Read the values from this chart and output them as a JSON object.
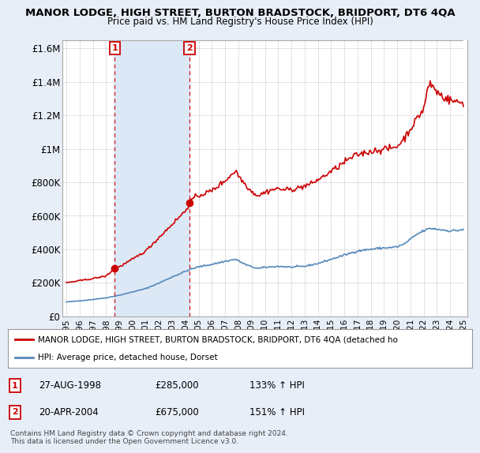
{
  "title": "MANOR LODGE, HIGH STREET, BURTON BRADSTOCK, BRIDPORT, DT6 4QA",
  "subtitle": "Price paid vs. HM Land Registry's House Price Index (HPI)",
  "legend_line1": "MANOR LODGE, HIGH STREET, BURTON BRADSTOCK, BRIDPORT, DT6 4QA (detached ho",
  "legend_line2": "HPI: Average price, detached house, Dorset",
  "footer": "Contains HM Land Registry data © Crown copyright and database right 2024.\nThis data is licensed under the Open Government Licence v3.0.",
  "property_color": "#cc0000",
  "hpi_color": "#5588bb",
  "background_color": "#e8eef8",
  "plot_bg_color": "#ffffff",
  "shade_color": "#dce8f5",
  "annotations": [
    {
      "num": "1",
      "date": "27-AUG-1998",
      "price": 285000,
      "pct": "133%",
      "x": 1998.65
    },
    {
      "num": "2",
      "date": "20-APR-2004",
      "price": 675000,
      "pct": "151%",
      "x": 2004.3
    }
  ],
  "ylim": [
    0,
    1650000
  ],
  "yticks": [
    0,
    200000,
    400000,
    600000,
    800000,
    1000000,
    1200000,
    1400000,
    1600000
  ],
  "ytick_labels": [
    "£0",
    "£200K",
    "£400K",
    "£600K",
    "£800K",
    "£1M",
    "£1.2M",
    "£1.4M",
    "£1.6M"
  ],
  "xlim": [
    1994.7,
    2025.3
  ],
  "xtick_years": [
    1995,
    1996,
    1997,
    1998,
    1999,
    2000,
    2001,
    2002,
    2003,
    2004,
    2005,
    2006,
    2007,
    2008,
    2009,
    2010,
    2011,
    2012,
    2013,
    2014,
    2015,
    2016,
    2017,
    2018,
    2019,
    2020,
    2021,
    2022,
    2023,
    2024,
    2025
  ]
}
